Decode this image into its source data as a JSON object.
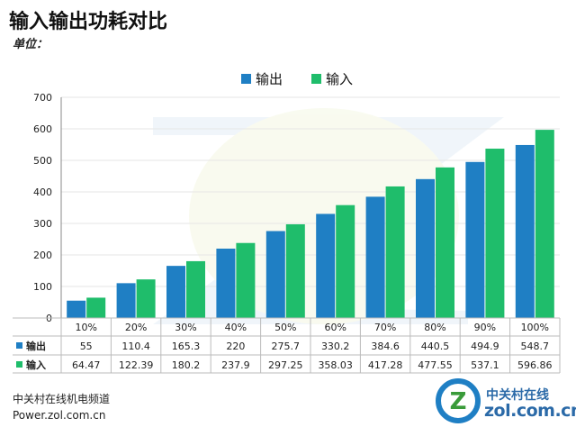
{
  "page": {
    "title": "输入输出功耗对比",
    "subtitle": "单位："
  },
  "footer": {
    "line1": "中关村在线机电频道",
    "line2": "Power.zol.com.cn"
  },
  "logo": {
    "top": "中关村在线",
    "bottom": "zol.com.cn",
    "mark": "Z"
  },
  "colors": {
    "output": "#1f7fc4",
    "input": "#1fbd6b",
    "axis": "#888888",
    "grid": "#e6e6e6"
  },
  "chart_data": {
    "type": "bar",
    "categories": [
      "10%",
      "20%",
      "30%",
      "40%",
      "50%",
      "60%",
      "70%",
      "80%",
      "90%",
      "100%"
    ],
    "series": [
      {
        "name": "输出",
        "values": [
          55,
          110.4,
          165.3,
          220,
          275.7,
          330.2,
          384.6,
          440.5,
          494.9,
          548.7
        ],
        "labels": [
          "55",
          "110.4",
          "165.3",
          "220",
          "275.7",
          "330.2",
          "384.6",
          "440.5",
          "494.9",
          "548.7"
        ]
      },
      {
        "name": "输入",
        "values": [
          64.47,
          122.39,
          180.2,
          237.9,
          297.25,
          358.03,
          417.28,
          477.55,
          537.1,
          596.86
        ],
        "labels": [
          "64.47",
          "122.39",
          "180.2",
          "237.9",
          "297.25",
          "358.03",
          "417.28",
          "477.55",
          "537.1",
          "596.86"
        ]
      }
    ],
    "ylim": [
      0,
      700
    ],
    "yticks": [
      "0",
      "100",
      "200",
      "300",
      "400",
      "500",
      "600",
      "700"
    ],
    "legend": "top-center",
    "data_table": true
  }
}
